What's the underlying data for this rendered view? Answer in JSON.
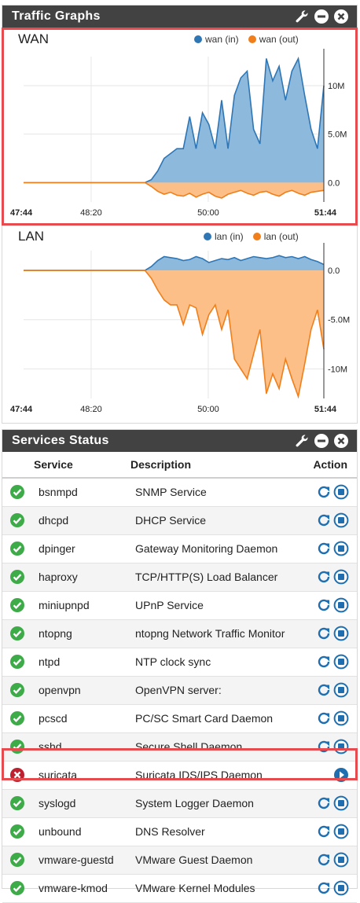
{
  "traffic": {
    "title": "Traffic Graphs",
    "colors": {
      "in_fill": "#8db9dd",
      "in_line": "#2f76b5",
      "out_fill": "#fdbf88",
      "out_line": "#f07f1b"
    }
  },
  "chart_data": [
    {
      "type": "area",
      "title": "WAN",
      "series": [
        {
          "name": "wan (in)",
          "color": "#2f76b5"
        },
        {
          "name": "wan (out)",
          "color": "#f07f1b"
        }
      ],
      "x_ticks": [
        "47:44",
        "48:20",
        "50:00",
        "51:44"
      ],
      "y_ticks": [
        "10M",
        "5.0M",
        "0.0"
      ],
      "in_values": [
        0,
        0,
        0,
        0,
        0,
        0,
        0,
        0,
        0,
        0,
        0,
        0,
        0,
        0,
        0,
        0,
        0,
        0,
        0,
        0,
        0.3,
        1.2,
        2.5,
        3.0,
        3.5,
        3.5,
        6.8,
        3.5,
        7.2,
        6.0,
        3.5,
        8.5,
        3.5,
        9.0,
        10.8,
        11.5,
        5.5,
        4.0,
        12.8,
        10.5,
        12.0,
        8.5,
        11.5,
        12.8,
        9.0,
        5.5,
        3.5,
        10.0
      ],
      "out_values": [
        0,
        0,
        0,
        0,
        0,
        0,
        0,
        0,
        0,
        0,
        0,
        0,
        0,
        0,
        0,
        0,
        0,
        0,
        0,
        0,
        -0.4,
        -0.9,
        -1.2,
        -1.0,
        -1.3,
        -1.4,
        -1.1,
        -1.5,
        -1.2,
        -1.0,
        -1.4,
        -1.6,
        -1.2,
        -1.0,
        -0.8,
        -1.1,
        -1.3,
        -1.0,
        -0.9,
        -1.2,
        -1.4,
        -1.0,
        -0.8,
        -1.1,
        -1.3,
        -1.0,
        -0.9,
        -0.8
      ],
      "ylim": [
        -2,
        13
      ]
    },
    {
      "type": "area",
      "title": "LAN",
      "series": [
        {
          "name": "lan (in)",
          "color": "#2f76b5"
        },
        {
          "name": "lan (out)",
          "color": "#f07f1b"
        }
      ],
      "x_ticks": [
        "47:44",
        "48:20",
        "50:00",
        "51:44"
      ],
      "y_ticks": [
        "0.0",
        "-5.0M",
        "-10M"
      ],
      "in_values": [
        0,
        0,
        0,
        0,
        0,
        0,
        0,
        0,
        0,
        0,
        0,
        0,
        0,
        0,
        0,
        0,
        0,
        0,
        0,
        0,
        0.4,
        1.0,
        1.4,
        1.3,
        1.2,
        1.0,
        1.1,
        1.4,
        1.2,
        0.8,
        1.0,
        1.2,
        1.1,
        1.3,
        1.0,
        1.2,
        1.4,
        1.3,
        1.2,
        1.3,
        1.5,
        1.3,
        1.4,
        1.2,
        1.4,
        1.1,
        0.9,
        0.6
      ],
      "out_values": [
        0,
        0,
        0,
        0,
        0,
        0,
        0,
        0,
        0,
        0,
        0,
        0,
        0,
        0,
        0,
        0,
        0,
        0,
        0,
        0,
        -0.8,
        -2.0,
        -3.0,
        -3.5,
        -3.5,
        -5.5,
        -3.5,
        -3.8,
        -6.5,
        -4.5,
        -3.5,
        -6.0,
        -4.0,
        -9.0,
        -10.0,
        -11.0,
        -8.5,
        -6.0,
        -12.5,
        -10.5,
        -12.0,
        -9.0,
        -11.0,
        -12.8,
        -9.5,
        -6.0,
        -4.0,
        -8.0
      ],
      "ylim": [
        -13,
        2
      ]
    }
  ],
  "services": {
    "title": "Services Status",
    "columns": {
      "service": "Service",
      "description": "Description",
      "action": "Action"
    },
    "colors": {
      "ok": "#3cab48",
      "error": "#bd2130",
      "action": "#1f6fb0"
    },
    "rows": [
      {
        "name": "bsnmpd",
        "description": "SNMP Service",
        "status": "running"
      },
      {
        "name": "dhcpd",
        "description": "DHCP Service",
        "status": "running"
      },
      {
        "name": "dpinger",
        "description": "Gateway Monitoring Daemon",
        "status": "running"
      },
      {
        "name": "haproxy",
        "description": "TCP/HTTP(S) Load Balancer",
        "status": "running"
      },
      {
        "name": "miniupnpd",
        "description": "UPnP Service",
        "status": "running"
      },
      {
        "name": "ntopng",
        "description": "ntopng Network Traffic Monitor",
        "status": "running"
      },
      {
        "name": "ntpd",
        "description": "NTP clock sync",
        "status": "running"
      },
      {
        "name": "openvpn",
        "description": "OpenVPN server:",
        "status": "running"
      },
      {
        "name": "pcscd",
        "description": "PC/SC Smart Card Daemon",
        "status": "running"
      },
      {
        "name": "sshd",
        "description": "Secure Shell Daemon",
        "status": "running"
      },
      {
        "name": "suricata",
        "description": "Suricata IDS/IPS Daemon",
        "status": "stopped"
      },
      {
        "name": "syslogd",
        "description": "System Logger Daemon",
        "status": "running"
      },
      {
        "name": "unbound",
        "description": "DNS Resolver",
        "status": "running"
      },
      {
        "name": "vmware-guestd",
        "description": "VMware Guest Daemon",
        "status": "running"
      },
      {
        "name": "vmware-kmod",
        "description": "VMware Kernel Modules",
        "status": "running"
      }
    ]
  }
}
